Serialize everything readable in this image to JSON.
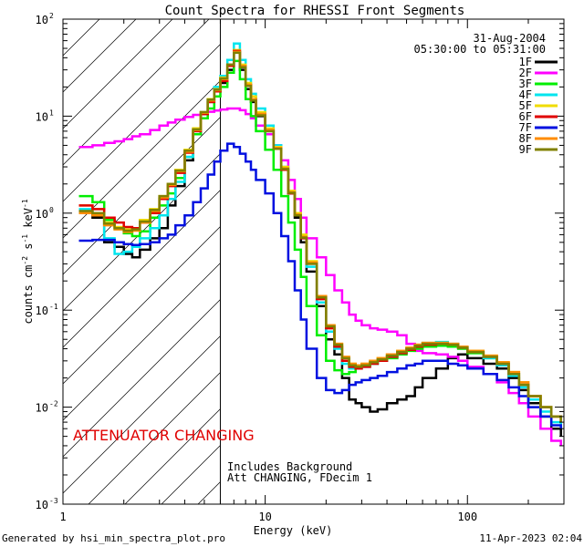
{
  "chart_data": {
    "type": "line",
    "title": "Count Spectra for RHESSI Front Segments",
    "xlabel": "Energy (keV)",
    "ylabel": "counts cm^-2 s^-1 keV^-1",
    "xscale": "log",
    "yscale": "log",
    "xlim": [
      1,
      300
    ],
    "ylim": [
      0.001,
      100
    ],
    "x_ticks": [
      {
        "value": 1,
        "label": "1"
      },
      {
        "value": 10,
        "label": "10"
      },
      {
        "value": 100,
        "label": "100"
      }
    ],
    "y_ticks": [
      {
        "value": 0.001,
        "base": "10",
        "exp": "-3"
      },
      {
        "value": 0.01,
        "base": "10",
        "exp": "-2"
      },
      {
        "value": 0.1,
        "base": "10",
        "exp": "-1"
      },
      {
        "value": 1,
        "base": "10",
        "exp": "0"
      },
      {
        "value": 10,
        "base": "10",
        "exp": "1"
      },
      {
        "value": 100,
        "base": "10",
        "exp": "2"
      }
    ],
    "date": "31-Aug-2004",
    "time_range": "05:30:00 to 05:31:00",
    "attenuator_change_energy": 6.0,
    "attenuator_label": "ATTENUATOR CHANGING",
    "annotation_line1": "Includes Background",
    "annotation_line2": "Att CHANGING, FDecim 1",
    "footer_left": "Generated by hsi_min_spectra_plot.pro",
    "footer_right": "11-Apr-2023 02:04",
    "energy_bins": [
      1.2,
      1.4,
      1.6,
      1.8,
      2.0,
      2.2,
      2.4,
      2.7,
      3.0,
      3.3,
      3.6,
      4.0,
      4.4,
      4.8,
      5.2,
      5.6,
      6.0,
      6.5,
      7.0,
      7.5,
      8.0,
      8.5,
      9.0,
      10,
      11,
      12,
      13,
      14,
      15,
      16,
      18,
      20,
      22,
      24,
      26,
      28,
      30,
      33,
      36,
      40,
      45,
      50,
      55,
      60,
      70,
      80,
      90,
      100,
      120,
      140,
      160,
      180,
      200,
      230,
      260,
      290
    ],
    "series": [
      {
        "name": "1F",
        "color": "#000000",
        "values": [
          1.0,
          0.9,
          0.5,
          0.45,
          0.38,
          0.35,
          0.42,
          0.55,
          0.7,
          1.2,
          1.9,
          3.5,
          6.5,
          10.5,
          14,
          18,
          22,
          30,
          46,
          30,
          19,
          14,
          10,
          7,
          4.8,
          2.8,
          1.6,
          0.9,
          0.5,
          0.25,
          0.11,
          0.05,
          0.035,
          0.02,
          0.012,
          0.011,
          0.01,
          0.009,
          0.0095,
          0.011,
          0.012,
          0.013,
          0.016,
          0.02,
          0.025,
          0.032,
          0.035,
          0.032,
          0.028,
          0.025,
          0.02,
          0.015,
          0.011,
          0.008,
          0.006,
          0.005
        ]
      },
      {
        "name": "2F",
        "color": "#ff00ff",
        "values": [
          4.8,
          5.0,
          5.3,
          5.5,
          5.8,
          6.2,
          6.5,
          7.2,
          8.0,
          8.6,
          9.2,
          9.8,
          10.3,
          10.8,
          11.1,
          11.4,
          11.7,
          12,
          12,
          11.5,
          10.5,
          9.5,
          8,
          6.5,
          5,
          3.5,
          2.2,
          1.4,
          0.9,
          0.55,
          0.35,
          0.23,
          0.16,
          0.12,
          0.09,
          0.078,
          0.07,
          0.065,
          0.063,
          0.06,
          0.055,
          0.045,
          0.038,
          0.036,
          0.035,
          0.033,
          0.03,
          0.026,
          0.022,
          0.018,
          0.014,
          0.011,
          0.008,
          0.006,
          0.0045,
          0.004
        ]
      },
      {
        "name": "3F",
        "color": "#00ee00",
        "values": [
          1.5,
          1.3,
          0.85,
          0.7,
          0.62,
          0.58,
          0.65,
          0.9,
          1.2,
          1.6,
          2.3,
          3.8,
          6.5,
          9.5,
          12,
          16,
          20,
          28,
          37,
          24,
          15,
          10,
          7,
          4.5,
          2.8,
          1.5,
          0.8,
          0.42,
          0.22,
          0.11,
          0.055,
          0.03,
          0.024,
          0.022,
          0.023,
          0.025,
          0.027,
          0.028,
          0.03,
          0.032,
          0.035,
          0.038,
          0.04,
          0.042,
          0.043,
          0.042,
          0.04,
          0.036,
          0.032,
          0.028,
          0.022,
          0.017,
          0.013,
          0.01,
          0.008,
          0.007
        ]
      },
      {
        "name": "4F",
        "color": "#00e5ee",
        "values": [
          1.1,
          1.0,
          0.55,
          0.38,
          0.4,
          0.45,
          0.55,
          0.7,
          0.95,
          1.4,
          2.1,
          3.8,
          7,
          11,
          15,
          20,
          26,
          38,
          56,
          38,
          24,
          17,
          12,
          8,
          5,
          3,
          1.7,
          1.0,
          0.55,
          0.28,
          0.12,
          0.06,
          0.04,
          0.028,
          0.025,
          0.025,
          0.026,
          0.028,
          0.03,
          0.033,
          0.036,
          0.04,
          0.043,
          0.046,
          0.047,
          0.045,
          0.042,
          0.037,
          0.032,
          0.027,
          0.021,
          0.016,
          0.012,
          0.009,
          0.007,
          0.006
        ]
      },
      {
        "name": "5F",
        "color": "#f0dc00",
        "values": [
          1.2,
          1.1,
          0.8,
          0.72,
          0.68,
          0.7,
          0.85,
          1.1,
          1.5,
          2.0,
          2.8,
          4.5,
          7.5,
          11,
          15,
          19,
          25,
          34,
          48,
          34,
          22,
          16,
          11,
          7.5,
          4.8,
          3,
          1.7,
          1.0,
          0.6,
          0.32,
          0.14,
          0.07,
          0.045,
          0.032,
          0.028,
          0.027,
          0.028,
          0.03,
          0.032,
          0.035,
          0.038,
          0.041,
          0.044,
          0.046,
          0.046,
          0.045,
          0.042,
          0.038,
          0.034,
          0.029,
          0.023,
          0.018,
          0.013,
          0.01,
          0.008,
          0.007
        ]
      },
      {
        "name": "6F",
        "color": "#e00000",
        "values": [
          1.2,
          1.1,
          0.9,
          0.8,
          0.72,
          0.7,
          0.8,
          1.0,
          1.4,
          1.9,
          2.6,
          4.2,
          7,
          10.5,
          14,
          18,
          23,
          33,
          47,
          33,
          21,
          15,
          10.5,
          7.2,
          4.6,
          2.8,
          1.6,
          0.95,
          0.55,
          0.3,
          0.13,
          0.065,
          0.042,
          0.03,
          0.026,
          0.025,
          0.026,
          0.028,
          0.03,
          0.033,
          0.036,
          0.039,
          0.042,
          0.044,
          0.045,
          0.044,
          0.041,
          0.037,
          0.033,
          0.028,
          0.022,
          0.017,
          0.013,
          0.01,
          0.008,
          0.007
        ]
      },
      {
        "name": "7F",
        "color": "#0010e0",
        "values": [
          0.52,
          0.53,
          0.53,
          0.5,
          0.48,
          0.47,
          0.48,
          0.5,
          0.55,
          0.6,
          0.75,
          0.95,
          1.3,
          1.8,
          2.5,
          3.4,
          4.4,
          5.2,
          4.8,
          4.1,
          3.4,
          2.8,
          2.2,
          1.6,
          1.0,
          0.58,
          0.32,
          0.16,
          0.08,
          0.04,
          0.02,
          0.015,
          0.014,
          0.015,
          0.017,
          0.018,
          0.019,
          0.02,
          0.021,
          0.023,
          0.025,
          0.027,
          0.028,
          0.03,
          0.03,
          0.028,
          0.027,
          0.025,
          0.022,
          0.019,
          0.016,
          0.013,
          0.01,
          0.008,
          0.0065,
          0.006
        ]
      },
      {
        "name": "8F",
        "color": "#ff8c00",
        "values": [
          1.0,
          0.95,
          0.75,
          0.68,
          0.64,
          0.66,
          0.8,
          1.05,
          1.45,
          1.95,
          2.7,
          4.3,
          7.2,
          10.8,
          14.5,
          18.5,
          24,
          34,
          46,
          33,
          21,
          15,
          10.5,
          7.2,
          4.7,
          2.9,
          1.65,
          0.97,
          0.57,
          0.31,
          0.14,
          0.07,
          0.045,
          0.033,
          0.028,
          0.027,
          0.028,
          0.03,
          0.032,
          0.035,
          0.038,
          0.041,
          0.044,
          0.046,
          0.046,
          0.045,
          0.042,
          0.038,
          0.034,
          0.029,
          0.023,
          0.018,
          0.013,
          0.01,
          0.008,
          0.007
        ]
      },
      {
        "name": "9F",
        "color": "#808000",
        "values": [
          1.05,
          1.0,
          0.78,
          0.7,
          0.66,
          0.68,
          0.82,
          1.08,
          1.5,
          2.0,
          2.75,
          4.4,
          7.3,
          11,
          14.8,
          18.8,
          24.5,
          34,
          45,
          32,
          20.5,
          14.5,
          10.2,
          7,
          4.6,
          2.85,
          1.62,
          0.95,
          0.56,
          0.3,
          0.135,
          0.068,
          0.044,
          0.032,
          0.027,
          0.026,
          0.027,
          0.029,
          0.031,
          0.034,
          0.037,
          0.04,
          0.043,
          0.045,
          0.045,
          0.044,
          0.041,
          0.037,
          0.033,
          0.028,
          0.022,
          0.017,
          0.013,
          0.01,
          0.008,
          0.007
        ]
      }
    ]
  }
}
